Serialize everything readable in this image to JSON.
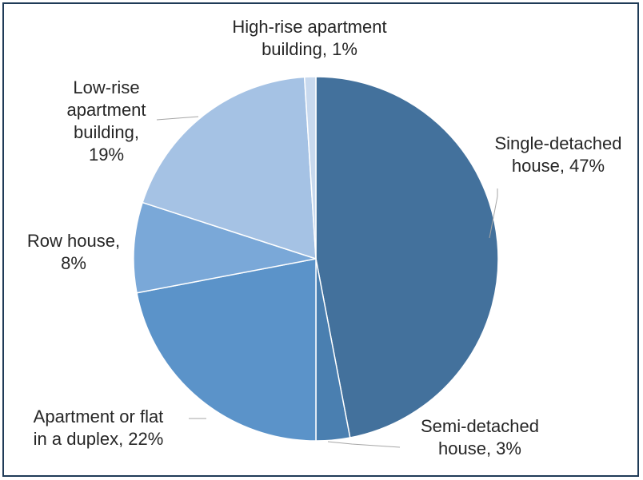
{
  "chart_data": {
    "type": "pie",
    "title": "",
    "slices": [
      {
        "label": "Single-detached\nhouse, 47%",
        "value": 47,
        "color": "#43719c"
      },
      {
        "label": "Semi-detached\nhouse, 3%",
        "value": 3,
        "color": "#4a7fb0"
      },
      {
        "label": "Apartment or flat\nin a duplex, 22%",
        "value": 22,
        "color": "#5b93c9"
      },
      {
        "label": "Row house,\n8%",
        "value": 8,
        "color": "#7aa8d8"
      },
      {
        "label": "Low-rise\napartment\nbuilding,\n19%",
        "value": 19,
        "color": "#a5c2e4"
      },
      {
        "label": "High-rise apartment\nbuilding, 1%",
        "value": 1,
        "color": "#c8d9ee"
      }
    ]
  }
}
